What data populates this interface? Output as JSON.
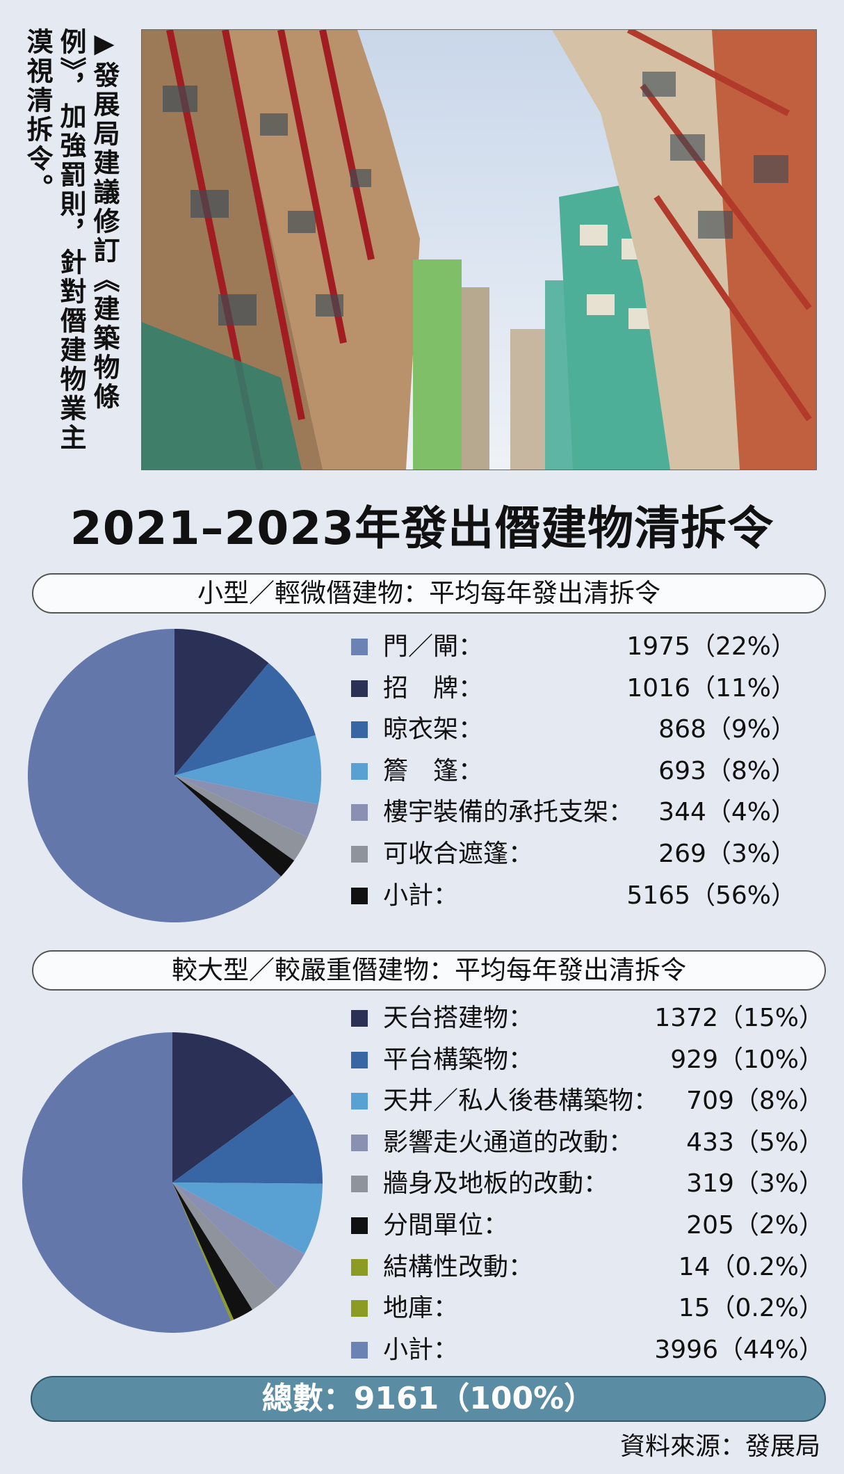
{
  "caption": "▶發展局建議修訂《建築物條例》，加強罰則，針對僭建物業主漠視清拆令。",
  "title": "2021–2023年發出僭建物清拆令",
  "colors": {
    "門閘": "#6b82b5",
    "招牌": "#2b3156",
    "晾衣架": "#3865a4",
    "簷篷": "#58a1d2",
    "支架": "#8a90b1",
    "可收合遮篷": "#8f949c",
    "小計黑": "#111111",
    "結構性改動": "#8b9b23",
    "地庫": "#8b9b23",
    "背景大塊": "#6377aa"
  },
  "chart_data": [
    {
      "type": "pie",
      "title": "小型／輕微僭建物：平均每年發出清拆令",
      "legend_placement": "right",
      "rows": [
        {
          "label": "門／閘：",
          "value": 1975,
          "pct": "22%",
          "display": "1975（22%）",
          "color": "#6b82b5",
          "swatch": "#6b82b5"
        },
        {
          "label": "招　牌：",
          "value": 1016,
          "pct": "11%",
          "display": "1016（11%）",
          "color": "#2b3156",
          "swatch": "#2b3156"
        },
        {
          "label": "晾衣架：",
          "value": 868,
          "pct": "9%",
          "display": "868（9%）",
          "color": "#3865a4",
          "swatch": "#3865a4"
        },
        {
          "label": "簷　篷：",
          "value": 693,
          "pct": "8%",
          "display": "693（8%）",
          "color": "#58a1d2",
          "swatch": "#58a1d2"
        },
        {
          "label": "樓宇裝備的承托支架：",
          "value": 344,
          "pct": "4%",
          "display": "344（4%）",
          "color": "#8a90b1",
          "swatch": "#8a90b1"
        },
        {
          "label": "可收合遮篷：",
          "value": 269,
          "pct": "3%",
          "display": "269（3%）",
          "color": "#8f949c",
          "swatch": "#8f949c"
        },
        {
          "label": "小計：",
          "value": 5165,
          "pct": "56%",
          "display": "5165（56%）",
          "color": "#111111",
          "swatch": "#111111"
        }
      ]
    },
    {
      "type": "pie",
      "title": "較大型／較嚴重僭建物：平均每年發出清拆令",
      "legend_placement": "right",
      "rows": [
        {
          "label": "天台搭建物：",
          "value": 1372,
          "pct": "15%",
          "display": "1372（15%）",
          "color": "#2b3156",
          "swatch": "#2b3156"
        },
        {
          "label": "平台構築物：",
          "value": 929,
          "pct": "10%",
          "display": "929（10%）",
          "color": "#3865a4",
          "swatch": "#3865a4"
        },
        {
          "label": "天井／私人後巷構築物：",
          "value": 709,
          "pct": "8%",
          "display": "709（8%）",
          "color": "#58a1d2",
          "swatch": "#58a1d2"
        },
        {
          "label": "影響走火通道的改動：",
          "value": 433,
          "pct": "5%",
          "display": "433（5%）",
          "color": "#8a90b1",
          "swatch": "#8a90b1"
        },
        {
          "label": "牆身及地板的改動：",
          "value": 319,
          "pct": "3%",
          "display": "319（3%）",
          "color": "#8f949c",
          "swatch": "#8f949c"
        },
        {
          "label": "分間單位：",
          "value": 205,
          "pct": "2%",
          "display": "205（2%）",
          "color": "#111111",
          "swatch": "#111111"
        },
        {
          "label": "結構性改動：",
          "value": 14,
          "pct": "0.2%",
          "display": "14（0.2%）",
          "color": "#8b9b23",
          "swatch": "#8b9b23"
        },
        {
          "label": "地庫：",
          "value": 15,
          "pct": "0.2%",
          "display": "15（0.2%）",
          "color": "#8b9b23",
          "swatch": "#8b9b23"
        },
        {
          "label": "小計：",
          "value": 3996,
          "pct": "44%",
          "display": "3996（44%）",
          "color": "#6b82b5",
          "swatch": "#6b82b5"
        }
      ]
    }
  ],
  "total": "總數：9161（100%）",
  "source": "資料來源：發展局"
}
